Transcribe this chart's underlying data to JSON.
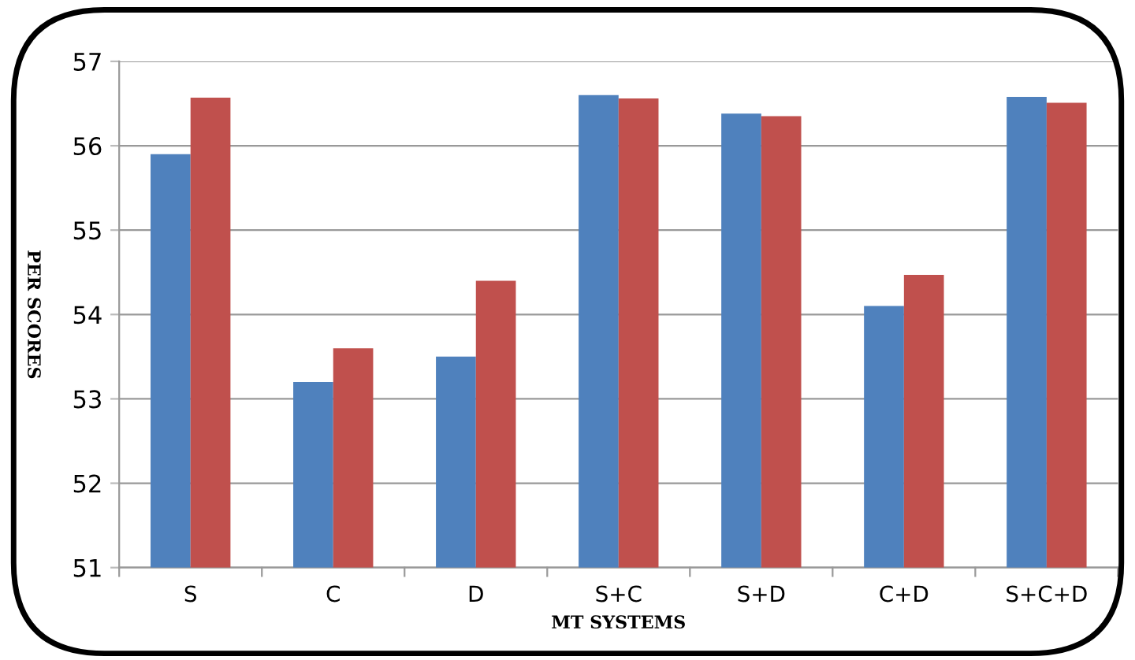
{
  "chart_data": {
    "type": "bar",
    "xlabel": "MT SYSTEMS",
    "ylabel": "PER SCORES",
    "categories": [
      "S",
      "C",
      "D",
      "S+C",
      "S+D",
      "C+D",
      "S+C+D"
    ],
    "series": [
      {
        "color": "#4f81bd",
        "values": [
          55.9,
          53.2,
          53.5,
          56.6,
          56.38,
          54.1,
          56.58
        ]
      },
      {
        "color": "#c0504d",
        "values": [
          56.57,
          53.6,
          54.4,
          56.56,
          56.35,
          54.47,
          56.51
        ]
      }
    ],
    "ylim": [
      51,
      57
    ],
    "yticks": [
      51,
      52,
      53,
      54,
      55,
      56,
      57
    ],
    "grid": "y",
    "legend": false
  }
}
